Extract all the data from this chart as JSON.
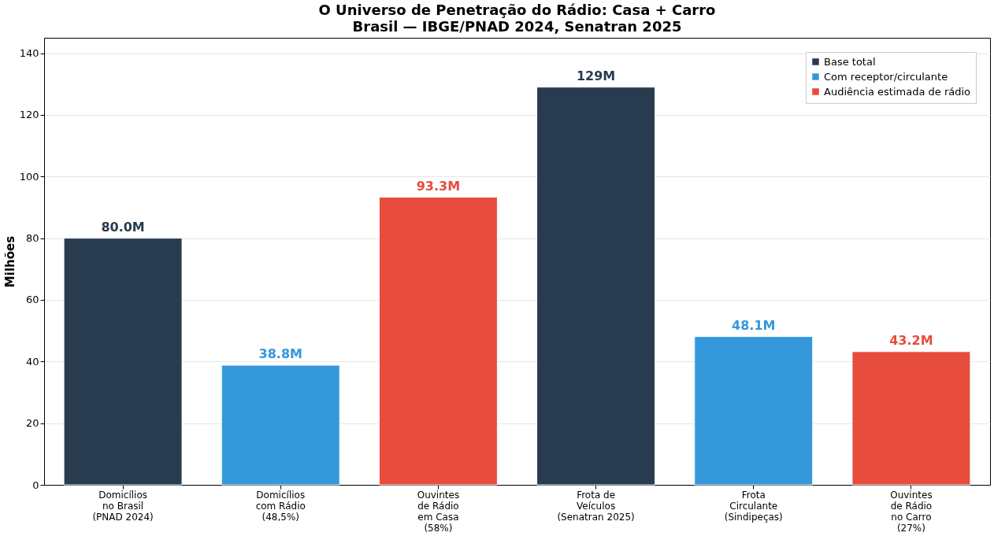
{
  "chart_data": {
    "type": "bar",
    "title": "O Universo de Penetração do Rádio: Casa + Carro",
    "subtitle": "Brasil — IBGE/PNAD 2024, Senatran 2025",
    "ylabel": "Milhões",
    "categories": [
      "Domicílios\nno Brasil\n(PNAD 2024)",
      "Domicílios\ncom Rádio\n(48,5%)",
      "Ouvintes\nde Rádio\nem Casa\n(58%)",
      "Frota de\nVeículos\n(Senatran 2025)",
      "Frota\nCirculante\n(Sindipeças)",
      "Ouvintes\nde Rádio\nno Carro\n(27%)"
    ],
    "series": [
      {
        "name": "Base total",
        "color": "#283b4f",
        "values": [
          80.0,
          null,
          null,
          129,
          null,
          null
        ],
        "value_labels": [
          "80.0M",
          null,
          null,
          "129M",
          null,
          null
        ]
      },
      {
        "name": "Com receptor/circulante",
        "color": "#3498db",
        "values": [
          null,
          38.8,
          null,
          null,
          48.1,
          null
        ],
        "value_labels": [
          null,
          "38.8M",
          null,
          null,
          "48.1M",
          null
        ]
      },
      {
        "name": "Audiência estimada de rádio",
        "color": "#e74c3c",
        "values": [
          null,
          null,
          93.3,
          null,
          null,
          43.2
        ],
        "value_labels": [
          null,
          null,
          "93.3M",
          null,
          null,
          "43.2M"
        ]
      }
    ],
    "ylim": [
      0,
      145
    ],
    "yticks": [
      0,
      20,
      40,
      60,
      80,
      100,
      120,
      140
    ],
    "grid": "y",
    "legend": "top right"
  }
}
